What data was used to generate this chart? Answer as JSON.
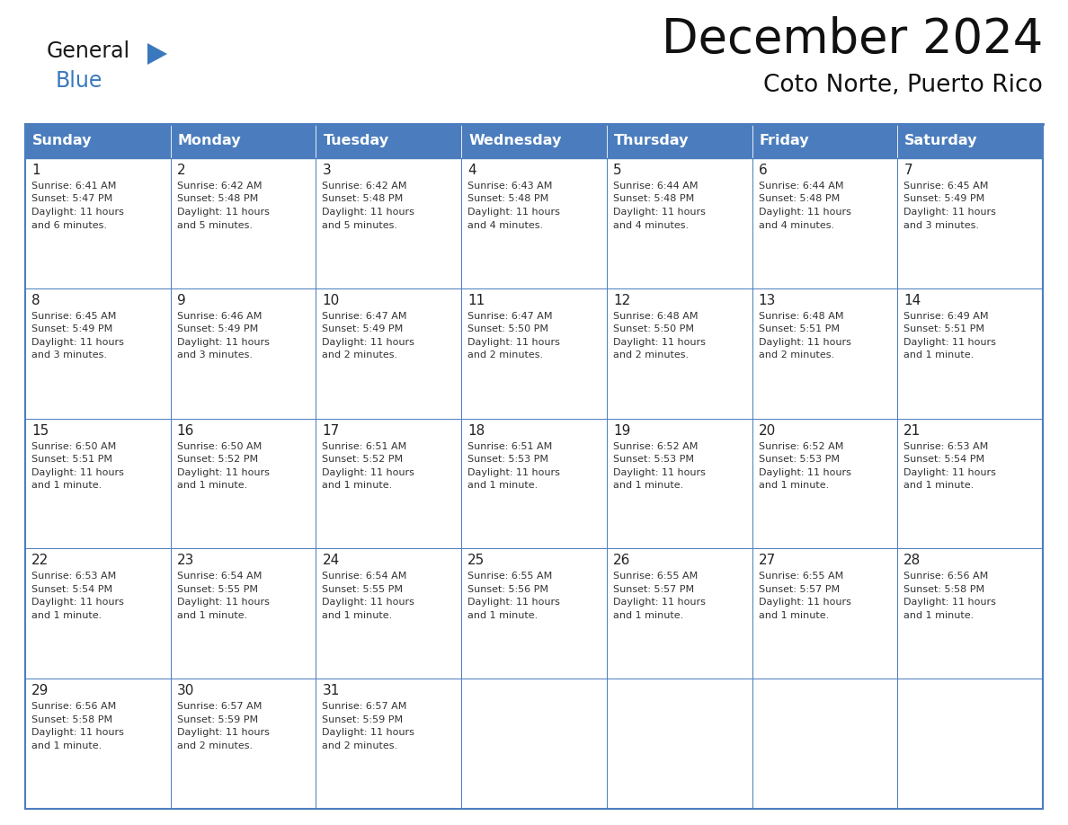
{
  "title": "December 2024",
  "subtitle": "Coto Norte, Puerto Rico",
  "days_of_week": [
    "Sunday",
    "Monday",
    "Tuesday",
    "Wednesday",
    "Thursday",
    "Friday",
    "Saturday"
  ],
  "header_bg_color": "#4B7DBE",
  "header_text_color": "#FFFFFF",
  "cell_bg_color": "#FFFFFF",
  "border_color": "#4B7DBE",
  "day_number_color": "#222222",
  "cell_text_color": "#333333",
  "title_color": "#111111",
  "subtitle_color": "#111111",
  "logo_general_color": "#1a1a1a",
  "logo_blue_color": "#3A78BE",
  "weeks": [
    [
      {
        "day": 1,
        "sunrise": "6:41 AM",
        "sunset": "5:47 PM",
        "daylight": "11 hours and 6 minutes."
      },
      {
        "day": 2,
        "sunrise": "6:42 AM",
        "sunset": "5:48 PM",
        "daylight": "11 hours and 5 minutes."
      },
      {
        "day": 3,
        "sunrise": "6:42 AM",
        "sunset": "5:48 PM",
        "daylight": "11 hours and 5 minutes."
      },
      {
        "day": 4,
        "sunrise": "6:43 AM",
        "sunset": "5:48 PM",
        "daylight": "11 hours and 4 minutes."
      },
      {
        "day": 5,
        "sunrise": "6:44 AM",
        "sunset": "5:48 PM",
        "daylight": "11 hours and 4 minutes."
      },
      {
        "day": 6,
        "sunrise": "6:44 AM",
        "sunset": "5:48 PM",
        "daylight": "11 hours and 4 minutes."
      },
      {
        "day": 7,
        "sunrise": "6:45 AM",
        "sunset": "5:49 PM",
        "daylight": "11 hours and 3 minutes."
      }
    ],
    [
      {
        "day": 8,
        "sunrise": "6:45 AM",
        "sunset": "5:49 PM",
        "daylight": "11 hours and 3 minutes."
      },
      {
        "day": 9,
        "sunrise": "6:46 AM",
        "sunset": "5:49 PM",
        "daylight": "11 hours and 3 minutes."
      },
      {
        "day": 10,
        "sunrise": "6:47 AM",
        "sunset": "5:49 PM",
        "daylight": "11 hours and 2 minutes."
      },
      {
        "day": 11,
        "sunrise": "6:47 AM",
        "sunset": "5:50 PM",
        "daylight": "11 hours and 2 minutes."
      },
      {
        "day": 12,
        "sunrise": "6:48 AM",
        "sunset": "5:50 PM",
        "daylight": "11 hours and 2 minutes."
      },
      {
        "day": 13,
        "sunrise": "6:48 AM",
        "sunset": "5:51 PM",
        "daylight": "11 hours and 2 minutes."
      },
      {
        "day": 14,
        "sunrise": "6:49 AM",
        "sunset": "5:51 PM",
        "daylight": "11 hours and 1 minute."
      }
    ],
    [
      {
        "day": 15,
        "sunrise": "6:50 AM",
        "sunset": "5:51 PM",
        "daylight": "11 hours and 1 minute."
      },
      {
        "day": 16,
        "sunrise": "6:50 AM",
        "sunset": "5:52 PM",
        "daylight": "11 hours and 1 minute."
      },
      {
        "day": 17,
        "sunrise": "6:51 AM",
        "sunset": "5:52 PM",
        "daylight": "11 hours and 1 minute."
      },
      {
        "day": 18,
        "sunrise": "6:51 AM",
        "sunset": "5:53 PM",
        "daylight": "11 hours and 1 minute."
      },
      {
        "day": 19,
        "sunrise": "6:52 AM",
        "sunset": "5:53 PM",
        "daylight": "11 hours and 1 minute."
      },
      {
        "day": 20,
        "sunrise": "6:52 AM",
        "sunset": "5:53 PM",
        "daylight": "11 hours and 1 minute."
      },
      {
        "day": 21,
        "sunrise": "6:53 AM",
        "sunset": "5:54 PM",
        "daylight": "11 hours and 1 minute."
      }
    ],
    [
      {
        "day": 22,
        "sunrise": "6:53 AM",
        "sunset": "5:54 PM",
        "daylight": "11 hours and 1 minute."
      },
      {
        "day": 23,
        "sunrise": "6:54 AM",
        "sunset": "5:55 PM",
        "daylight": "11 hours and 1 minute."
      },
      {
        "day": 24,
        "sunrise": "6:54 AM",
        "sunset": "5:55 PM",
        "daylight": "11 hours and 1 minute."
      },
      {
        "day": 25,
        "sunrise": "6:55 AM",
        "sunset": "5:56 PM",
        "daylight": "11 hours and 1 minute."
      },
      {
        "day": 26,
        "sunrise": "6:55 AM",
        "sunset": "5:57 PM",
        "daylight": "11 hours and 1 minute."
      },
      {
        "day": 27,
        "sunrise": "6:55 AM",
        "sunset": "5:57 PM",
        "daylight": "11 hours and 1 minute."
      },
      {
        "day": 28,
        "sunrise": "6:56 AM",
        "sunset": "5:58 PM",
        "daylight": "11 hours and 1 minute."
      }
    ],
    [
      {
        "day": 29,
        "sunrise": "6:56 AM",
        "sunset": "5:58 PM",
        "daylight": "11 hours and 1 minute."
      },
      {
        "day": 30,
        "sunrise": "6:57 AM",
        "sunset": "5:59 PM",
        "daylight": "11 hours and 2 minutes."
      },
      {
        "day": 31,
        "sunrise": "6:57 AM",
        "sunset": "5:59 PM",
        "daylight": "11 hours and 2 minutes."
      },
      null,
      null,
      null,
      null
    ]
  ]
}
